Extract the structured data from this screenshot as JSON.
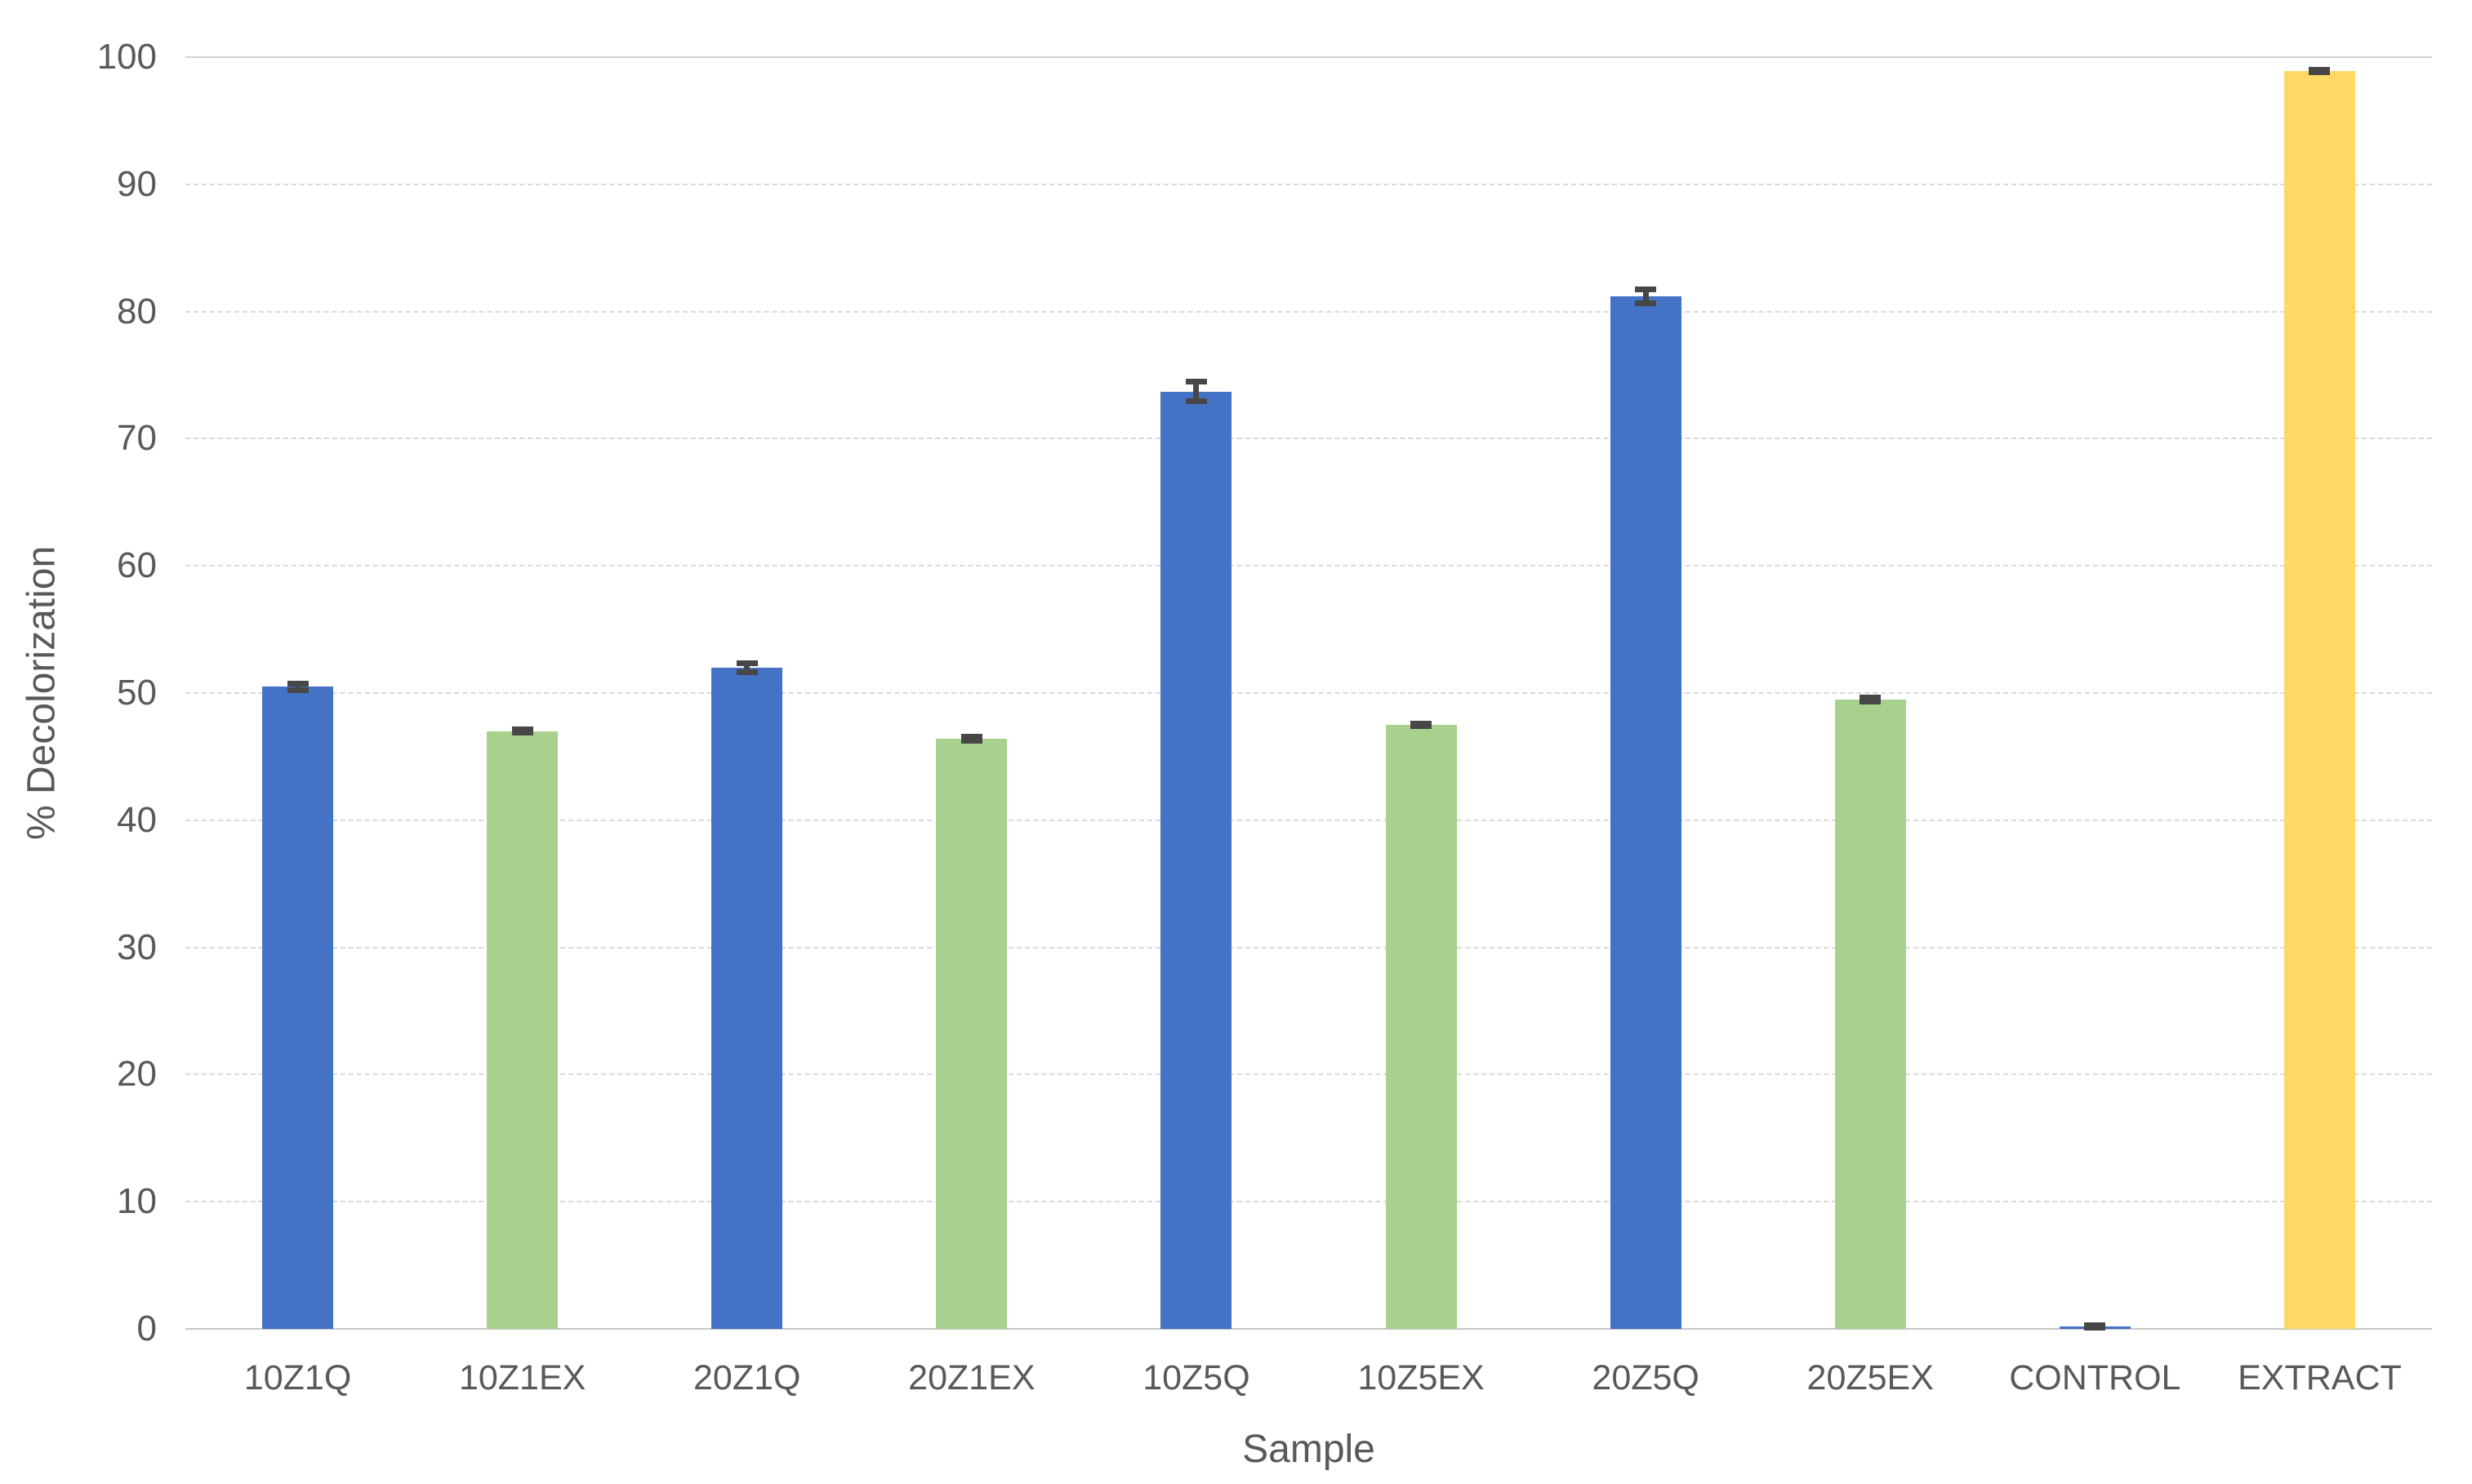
{
  "chart_data": {
    "type": "bar",
    "title": "",
    "xlabel": "Sample",
    "ylabel": "% Decolorization",
    "ylim": [
      0,
      100
    ],
    "yticks": [
      0,
      10,
      20,
      30,
      40,
      50,
      60,
      70,
      80,
      90,
      100
    ],
    "grid": true,
    "legend": "none",
    "categories": [
      "10Z1Q",
      "10Z1EX",
      "20Z1Q",
      "20Z1EX",
      "10Z5Q",
      "10Z5EX",
      "20Z5Q",
      "20Z5EX",
      "CONTROL",
      "EXTRACT"
    ],
    "values": [
      50.5,
      47.0,
      52.0,
      46.4,
      73.7,
      47.5,
      81.2,
      49.5,
      0.2,
      98.9
    ],
    "error_bars": [
      0.3,
      0.15,
      0.4,
      0.2,
      0.8,
      0.15,
      0.6,
      0.2,
      0.15,
      0.15
    ],
    "bar_colors": [
      "#4472C4",
      "#A9D18E",
      "#4472C4",
      "#A9D18E",
      "#4472C4",
      "#A9D18E",
      "#4472C4",
      "#A9D18E",
      "#4472C4",
      "#FFD966"
    ],
    "colors": {
      "series_blue": "#4472C4",
      "series_green": "#A9D18E",
      "series_yellow": "#FFD966",
      "gridline": "#D9D9D9",
      "axis_line": "#C6C6C6",
      "text": "#595959",
      "error_bar": "#474747"
    }
  }
}
